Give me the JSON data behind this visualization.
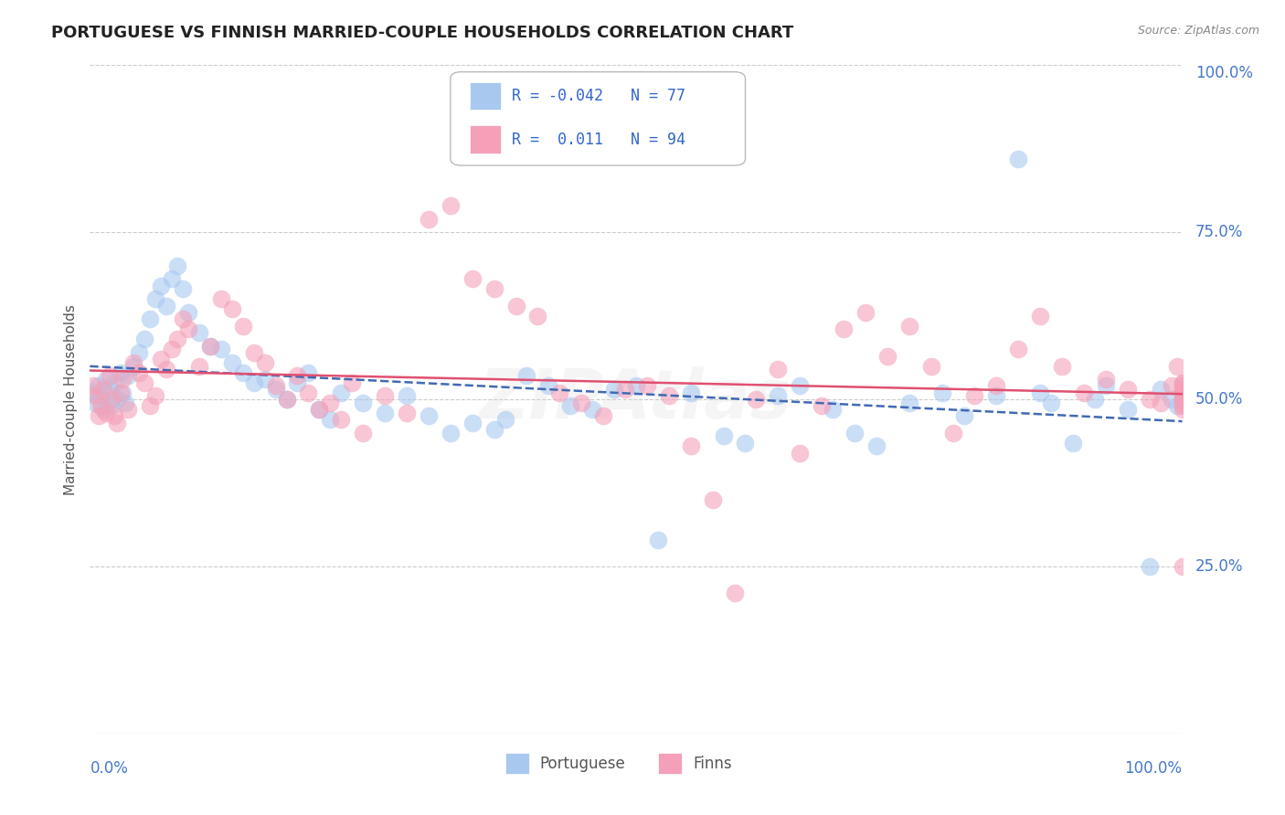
{
  "title": "PORTUGUESE VS FINNISH MARRIED-COUPLE HOUSEHOLDS CORRELATION CHART",
  "source": "Source: ZipAtlas.com",
  "ylabel": "Married-couple Households",
  "legend_portuguese": "Portuguese",
  "legend_finns": "Finns",
  "r_portuguese": -0.042,
  "n_portuguese": 77,
  "r_finns": 0.011,
  "n_finns": 94,
  "color_portuguese": "#a8c8f0",
  "color_finns": "#f4a0b8",
  "line_color_portuguese": "#4169b5",
  "line_color_finns": "#e05070",
  "background_color": "#ffffff",
  "grid_color": "#cccccc",
  "title_color": "#222222",
  "axis_label_color": "#4477cc",
  "watermark": "ZIPAtlas",
  "portuguese_x": [
    0.3,
    0.5,
    0.8,
    1.0,
    1.2,
    1.5,
    1.8,
    2.0,
    2.2,
    2.5,
    2.8,
    3.0,
    3.2,
    3.5,
    4.0,
    4.5,
    5.0,
    5.5,
    6.0,
    6.5,
    7.0,
    7.5,
    8.0,
    8.5,
    9.0,
    10.0,
    11.0,
    12.0,
    13.0,
    14.0,
    15.0,
    16.0,
    17.0,
    18.0,
    19.0,
    20.0,
    21.0,
    22.0,
    23.0,
    25.0,
    27.0,
    29.0,
    31.0,
    33.0,
    35.0,
    37.0,
    38.0,
    40.0,
    42.0,
    44.0,
    46.0,
    48.0,
    50.0,
    52.0,
    55.0,
    58.0,
    60.0,
    63.0,
    65.0,
    68.0,
    70.0,
    72.0,
    75.0,
    78.0,
    80.0,
    83.0,
    85.0,
    87.0,
    88.0,
    90.0,
    92.0,
    93.0,
    95.0,
    97.0,
    98.0,
    99.0,
    99.5
  ],
  "portuguese_y": [
    51.0,
    49.5,
    52.0,
    50.5,
    48.5,
    53.0,
    51.5,
    49.0,
    52.5,
    50.0,
    54.0,
    51.0,
    49.5,
    53.5,
    55.0,
    57.0,
    59.0,
    62.0,
    65.0,
    67.0,
    64.0,
    68.0,
    70.0,
    66.5,
    63.0,
    60.0,
    58.0,
    57.5,
    55.5,
    54.0,
    52.5,
    53.0,
    51.5,
    50.0,
    52.5,
    54.0,
    48.5,
    47.0,
    51.0,
    49.5,
    48.0,
    50.5,
    47.5,
    45.0,
    46.5,
    45.5,
    47.0,
    53.5,
    52.0,
    49.0,
    48.5,
    51.5,
    52.0,
    29.0,
    51.0,
    44.5,
    43.5,
    50.5,
    52.0,
    48.5,
    45.0,
    43.0,
    49.5,
    51.0,
    47.5,
    50.5,
    86.0,
    51.0,
    49.5,
    43.5,
    50.0,
    52.0,
    48.5,
    25.0,
    51.5,
    50.0,
    49.0
  ],
  "finns_x": [
    0.3,
    0.5,
    0.8,
    1.0,
    1.2,
    1.5,
    1.8,
    2.0,
    2.2,
    2.5,
    2.8,
    3.0,
    3.5,
    4.0,
    4.5,
    5.0,
    5.5,
    6.0,
    6.5,
    7.0,
    7.5,
    8.0,
    8.5,
    9.0,
    10.0,
    11.0,
    12.0,
    13.0,
    14.0,
    15.0,
    16.0,
    17.0,
    18.0,
    19.0,
    20.0,
    21.0,
    22.0,
    23.0,
    24.0,
    25.0,
    27.0,
    29.0,
    31.0,
    33.0,
    35.0,
    37.0,
    39.0,
    41.0,
    43.0,
    45.0,
    47.0,
    49.0,
    51.0,
    53.0,
    55.0,
    57.0,
    59.0,
    61.0,
    63.0,
    65.0,
    67.0,
    69.0,
    71.0,
    73.0,
    75.0,
    77.0,
    79.0,
    81.0,
    83.0,
    85.0,
    87.0,
    89.0,
    91.0,
    93.0,
    95.0,
    97.0,
    98.0,
    99.0,
    99.5,
    100.0,
    100.0,
    100.0,
    100.0,
    100.0,
    100.0,
    100.0,
    100.0,
    100.0,
    100.0,
    100.0,
    100.0,
    100.0,
    100.0,
    100.0
  ],
  "finns_y": [
    52.0,
    50.5,
    47.5,
    49.0,
    51.5,
    48.0,
    53.5,
    50.0,
    47.5,
    46.5,
    51.0,
    53.0,
    48.5,
    55.5,
    54.0,
    52.5,
    49.0,
    50.5,
    56.0,
    54.5,
    57.5,
    59.0,
    62.0,
    60.5,
    55.0,
    58.0,
    65.0,
    63.5,
    61.0,
    57.0,
    55.5,
    52.0,
    50.0,
    53.5,
    51.0,
    48.5,
    49.5,
    47.0,
    52.5,
    45.0,
    50.5,
    48.0,
    77.0,
    79.0,
    68.0,
    66.5,
    64.0,
    62.5,
    51.0,
    49.5,
    47.5,
    51.5,
    52.0,
    50.5,
    43.0,
    35.0,
    21.0,
    50.0,
    54.5,
    42.0,
    49.0,
    60.5,
    63.0,
    56.5,
    61.0,
    55.0,
    45.0,
    50.5,
    52.0,
    57.5,
    62.5,
    55.0,
    51.0,
    53.0,
    51.5,
    50.0,
    49.5,
    52.0,
    55.0,
    51.0,
    48.5,
    50.0,
    52.5,
    51.0,
    50.0,
    51.5,
    49.5,
    52.0,
    50.5,
    51.0,
    49.0,
    52.5,
    25.0,
    51.0
  ]
}
